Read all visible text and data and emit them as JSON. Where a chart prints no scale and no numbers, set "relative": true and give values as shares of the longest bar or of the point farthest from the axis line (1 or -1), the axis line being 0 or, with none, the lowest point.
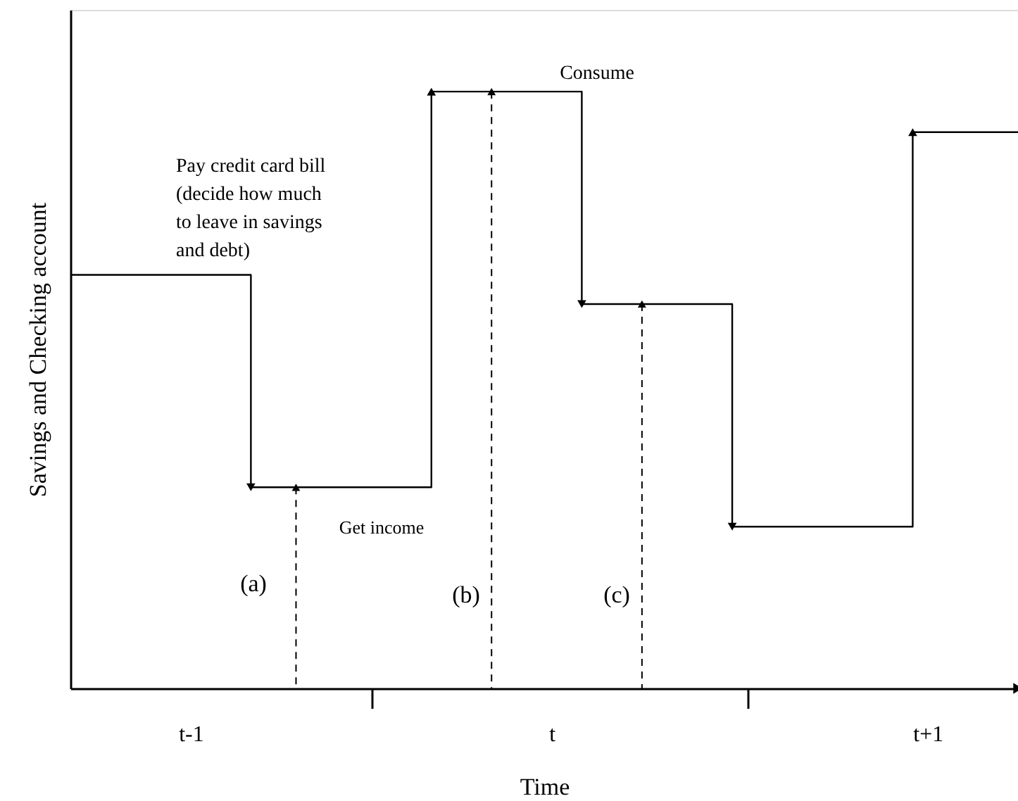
{
  "chart_data": {
    "type": "step",
    "relative": true,
    "xlabel": "Time",
    "ylabel": "Savings and Checking account",
    "categories": [
      null,
      null,
      null,
      null,
      null,
      null,
      null,
      null,
      "t-1",
      null,
      null,
      null,
      null,
      null,
      null,
      null,
      null,
      null,
      null,
      null,
      null,
      null,
      null,
      null,
      null,
      null,
      null,
      null,
      null,
      null,
      null,
      null,
      "t",
      null,
      null,
      null,
      null,
      null,
      null,
      null,
      null,
      null,
      null,
      null,
      null,
      null,
      null,
      null,
      null,
      null,
      null,
      null,
      null,
      null,
      null,
      null,
      null,
      "t+1",
      null,
      null,
      null,
      null,
      null,
      null
    ],
    "series": [
      {
        "color": "#000000",
        "values": [
          0.693,
          0.693,
          0.693,
          0.693,
          0.693,
          0.693,
          0.693,
          0.693,
          0.693,
          0.693,
          0.693,
          0.693,
          0.337,
          0.337,
          0.337,
          0.337,
          0.337,
          0.337,
          0.337,
          0.337,
          0.337,
          0.337,
          0.337,
          0.337,
          1,
          1,
          1,
          1,
          1,
          1,
          1,
          1,
          1,
          1,
          0.644,
          0.644,
          0.644,
          0.644,
          0.644,
          0.644,
          0.644,
          0.644,
          0.644,
          0.644,
          0.271,
          0.271,
          0.271,
          0.271,
          0.271,
          0.271,
          0.271,
          0.271,
          0.271,
          0.271,
          0.271,
          0.271,
          0.932,
          0.932,
          0.932,
          0.932,
          0.932,
          0.932,
          0.932,
          0.932
        ]
      },
      {
        "type": "lollipop",
        "color": "#000000",
        "line_style": "dashed",
        "marker": "triangle",
        "values": [
          null,
          null,
          null,
          null,
          null,
          null,
          null,
          null,
          null,
          null,
          null,
          null,
          null,
          null,
          null,
          0.337,
          null,
          null,
          null,
          null,
          null,
          null,
          null,
          null,
          null,
          null,
          null,
          null,
          1,
          null,
          null,
          null,
          null,
          null,
          null,
          null,
          null,
          null,
          0.644,
          null,
          null,
          null,
          null,
          null,
          null,
          null,
          null,
          null,
          null,
          null,
          null,
          null,
          null,
          null,
          null,
          null,
          null,
          null,
          null,
          null,
          null,
          null,
          null,
          null
        ]
      }
    ],
    "annotations": [
      "Pay credit card bill\n(decide how much\nto leave in savings\nand debt)",
      "Consume",
      "Get income",
      "(a)",
      "(b)",
      "(c)"
    ],
    "grid": false,
    "marker": "none",
    "line_style": "solid"
  }
}
